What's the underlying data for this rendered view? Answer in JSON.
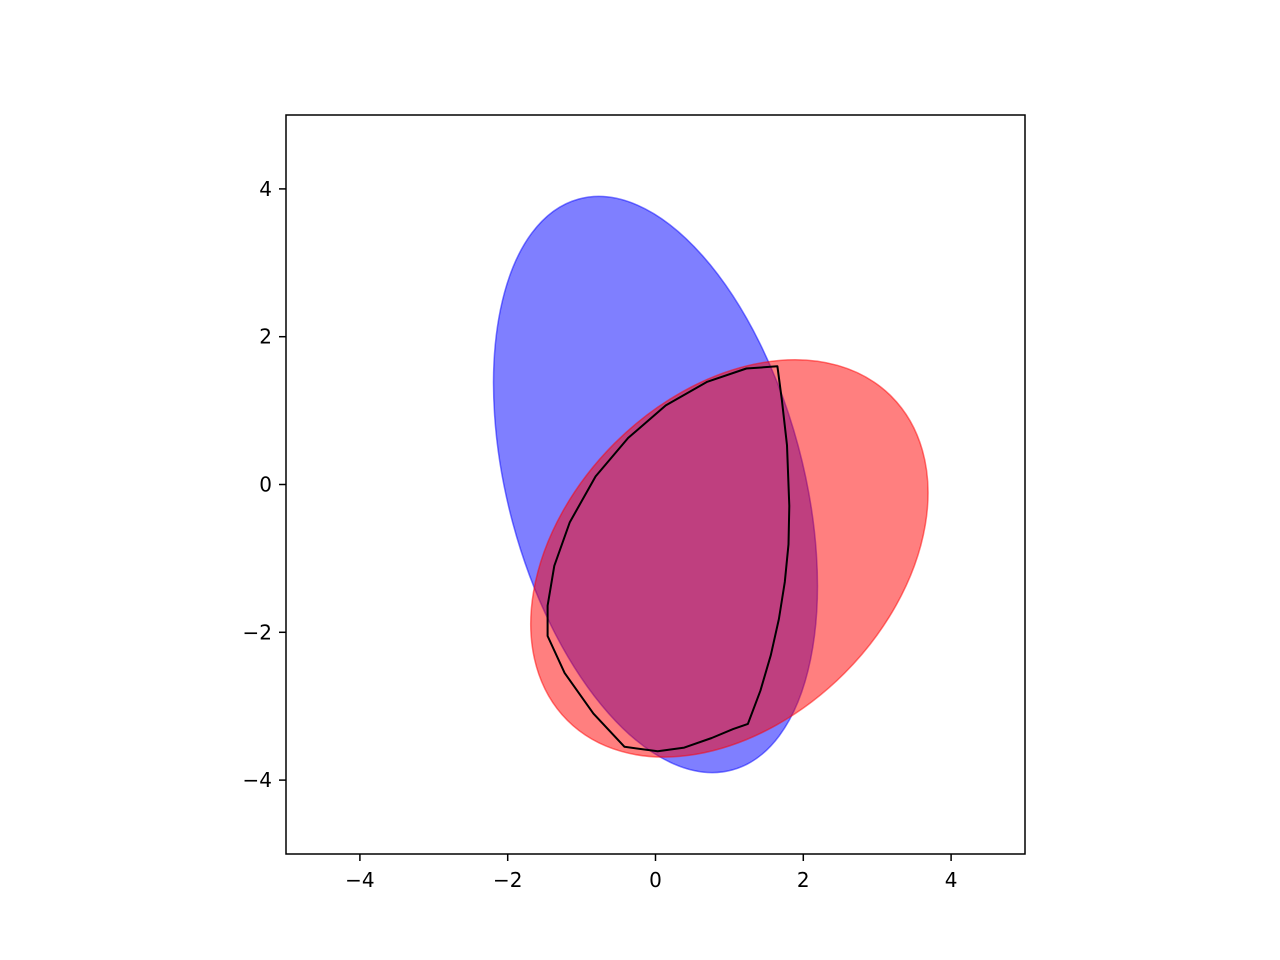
{
  "chart_data": {
    "type": "area",
    "title": "",
    "xlabel": "",
    "ylabel": "",
    "xlim": [
      -5,
      5
    ],
    "ylim": [
      -5,
      5
    ],
    "grid": false,
    "x_ticks": [
      {
        "value": -4,
        "label": "−4"
      },
      {
        "value": -2,
        "label": "−2"
      },
      {
        "value": 0,
        "label": "0"
      },
      {
        "value": 2,
        "label": "2"
      },
      {
        "value": 4,
        "label": "4"
      }
    ],
    "y_ticks": [
      {
        "value": 4,
        "label": "4"
      },
      {
        "value": 2,
        "label": "2"
      },
      {
        "value": 0,
        "label": "0"
      },
      {
        "value": -2,
        "label": "−2"
      },
      {
        "value": -4,
        "label": "−4"
      }
    ],
    "ellipses": [
      {
        "color": "#0000ff",
        "opacity": 0.5,
        "center": [
          0.0,
          0.0
        ],
        "semi_axes": [
          2.0,
          4.0
        ],
        "rotation_deg": 15
      },
      {
        "color": "#ff0000",
        "opacity": 0.5,
        "center": [
          1.0,
          -1.0
        ],
        "semi_axes": [
          2.2,
          3.1
        ],
        "rotation_deg": -45
      }
    ],
    "intersection": {
      "outline_color": "#000000",
      "points": [
        [
          1.65,
          1.6
        ],
        [
          1.71,
          1.14
        ],
        [
          1.78,
          0.53
        ],
        [
          1.81,
          -0.29
        ],
        [
          1.8,
          -0.81
        ],
        [
          1.75,
          -1.32
        ],
        [
          1.67,
          -1.82
        ],
        [
          1.56,
          -2.31
        ],
        [
          1.42,
          -2.79
        ],
        [
          1.25,
          -3.24
        ],
        [
          1.05,
          -3.31
        ],
        [
          0.76,
          -3.43
        ],
        [
          0.39,
          -3.56
        ],
        [
          0.03,
          -3.61
        ],
        [
          -0.42,
          -3.55
        ],
        [
          -0.84,
          -3.1
        ],
        [
          -1.23,
          -2.55
        ],
        [
          -1.46,
          -2.05
        ],
        [
          -1.46,
          -1.64
        ],
        [
          -1.37,
          -1.1
        ],
        [
          -1.16,
          -0.51
        ],
        [
          -0.81,
          0.11
        ],
        [
          -0.37,
          0.63
        ],
        [
          0.14,
          1.07
        ],
        [
          0.7,
          1.39
        ],
        [
          1.23,
          1.57
        ],
        [
          1.65,
          1.6
        ]
      ]
    }
  }
}
